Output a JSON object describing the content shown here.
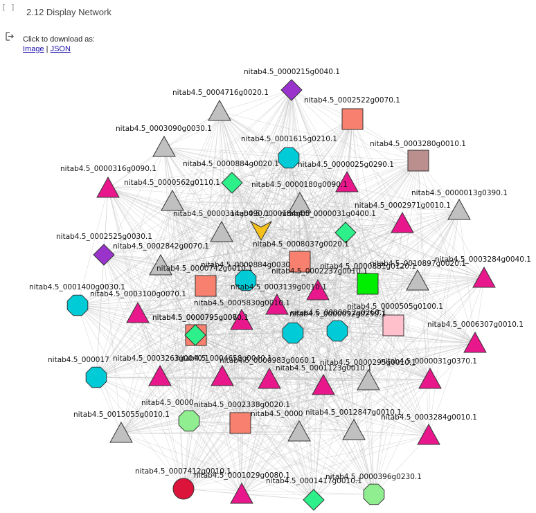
{
  "cell": {
    "prompt": "[ ]",
    "title": "2.12 Display Network"
  },
  "output": {
    "icon": "output-arrow-icon",
    "download_text": "Click to download as:",
    "link_image": "Image",
    "separator": "|",
    "link_json": "JSON"
  },
  "network": {
    "colors": {
      "edge": "#bdbdbd",
      "gray": "#c0c0c0",
      "pink": "#e8188c",
      "salmon": "#f8806e",
      "cyan": "#00cbd6",
      "green": "#2ef08a",
      "purple": "#9933cc",
      "gold": "#f5c01a",
      "lime": "#00ee00",
      "lightpink": "#ffc0cb",
      "rosybrown": "#bc8f8f",
      "lightgreen": "#90ee90",
      "crimson": "#dc143c"
    },
    "nodes": [
      {
        "label": "nitab4.5_0000215g0040.1",
        "shape": "diamond",
        "color": "purple"
      },
      {
        "label": "nitab4.5_0004716g0020.1",
        "shape": "triangle",
        "color": "gray"
      },
      {
        "label": "nitab4.5_0002522g0070.1",
        "shape": "square",
        "color": "salmon"
      },
      {
        "label": "nitab4.5_0003090g0030.1",
        "shape": "triangle",
        "color": "gray"
      },
      {
        "label": "nitab4.5_0001615g0210.1",
        "shape": "octagon",
        "color": "cyan"
      },
      {
        "label": "nitab4.5_0003280g0010.1",
        "shape": "square",
        "color": "rosybrown"
      },
      {
        "label": "nitab4.5_0000884g0020.1",
        "shape": "diamond",
        "color": "green"
      },
      {
        "label": "nitab4.5_0000025g0290.1",
        "shape": "triangle",
        "color": "pink"
      },
      {
        "label": "nitab4.5_0000316g0090.1",
        "shape": "triangle",
        "color": "pink"
      },
      {
        "label": "nitab4.5_0000562g0110.1",
        "shape": "triangle",
        "color": "gray"
      },
      {
        "label": "nitab4.5_0000180g0090.1",
        "shape": "triangle",
        "color": "gray"
      },
      {
        "label": "nitab4.5_0000013g0390.1",
        "shape": "triangle",
        "color": "gray"
      },
      {
        "label": "nitab4.5_0002971g0010.1",
        "shape": "triangle",
        "color": "pink"
      },
      {
        "label": "nitab4.5_0000314g0090.1",
        "shape": "triangle",
        "color": "gray"
      },
      {
        "label": "nitab4.5_0000184g00",
        "shape": "vee",
        "color": "gold"
      },
      {
        "label": "nitab4.5_0000031g0400.1",
        "shape": "diamond",
        "color": "green"
      },
      {
        "label": "nitab4.5_0002525g0030.1",
        "shape": "diamond",
        "color": "purple"
      },
      {
        "label": "nitab4.5_0008037g0020.1",
        "shape": "square",
        "color": "salmon"
      },
      {
        "label": "nitab4.5_0002842g0070.1",
        "shape": "triangle",
        "color": "gray"
      },
      {
        "label": "nitab4.5_0003284g0040.1",
        "shape": "triangle",
        "color": "pink"
      },
      {
        "label": "nitab4.5_0000884g0030",
        "shape": "octagon",
        "color": "cyan"
      },
      {
        "label": "nitab4.5_0002237g0010.1",
        "shape": "triangle",
        "color": "pink"
      },
      {
        "label": "nitab4.5_0000881g0120.1",
        "shape": "square",
        "color": "lime"
      },
      {
        "label": "nitab4.5_0010897g0020.1",
        "shape": "triangle",
        "color": "gray"
      },
      {
        "label": "nitab4.5_0001400g0030.1",
        "shape": "octagon",
        "color": "cyan"
      },
      {
        "label": "nitab4.5_0000742g0010.1",
        "shape": "square",
        "color": "salmon"
      },
      {
        "label": "nitab4.5_0003139g0010.1",
        "shape": "triangle",
        "color": "pink"
      },
      {
        "label": "nitab4.5_0003100g0070.1",
        "shape": "triangle",
        "color": "pink"
      },
      {
        "label": "nitab4.5_0005830g0010.1",
        "shape": "triangle",
        "color": "pink"
      },
      {
        "label": "nitab4.5_0000505g0100.1",
        "shape": "square",
        "color": "lightpink"
      },
      {
        "label": "nitab4.5_0000795g0060.1",
        "shape": "square",
        "color": "salmon"
      },
      {
        "label": "nitab4.5_0000052g0250.1",
        "shape": "octagon",
        "color": "cyan"
      },
      {
        "label": "nitab4.5_0000052g0260.1",
        "shape": "octagon",
        "color": "cyan"
      },
      {
        "label": "nitab4.5_0000795g0070.1",
        "shape": "diamond",
        "color": "green"
      },
      {
        "label": "nitab4.5_0006307g0010.1",
        "shape": "triangle",
        "color": "pink"
      },
      {
        "label": "nitab4.5_000017",
        "shape": "octagon",
        "color": "cyan"
      },
      {
        "label": "nitab4.5_0003263g0040.1",
        "shape": "triangle",
        "color": "pink"
      },
      {
        "label": "nitab4.5_0004658g0040.1",
        "shape": "triangle",
        "color": "pink"
      },
      {
        "label": "nitab4.5_0000983g0060.1",
        "shape": "triangle",
        "color": "pink"
      },
      {
        "label": "nitab4.5_0001123g0010.1",
        "shape": "triangle",
        "color": "pink"
      },
      {
        "label": "nitab4.5_0000295g0010.1",
        "shape": "triangle",
        "color": "gray"
      },
      {
        "label": "nitab4.5_0000031g0370.1",
        "shape": "triangle",
        "color": "pink"
      },
      {
        "label": "nitab4.5_0002338g0020.1",
        "shape": "square",
        "color": "salmon"
      },
      {
        "label": "nitab4.5_0000",
        "shape": "octagon",
        "color": "lightgreen"
      },
      {
        "label": "nitab4.5_0015055g0010.1",
        "shape": "triangle",
        "color": "gray"
      },
      {
        "label": "nitab4.5_0000",
        "shape": "triangle",
        "color": "gray"
      },
      {
        "label": "nitab4.5_0012847g0010.1",
        "shape": "triangle",
        "color": "gray"
      },
      {
        "label": "nitab4.5_0003284g0010.1",
        "shape": "triangle",
        "color": "pink"
      },
      {
        "label": "nitab4.5_0007412g0010.1",
        "shape": "circle",
        "color": "crimson"
      },
      {
        "label": "nitab4.5_0001029g0080.1",
        "shape": "triangle",
        "color": "pink"
      },
      {
        "label": "nitab4.5_0001417g0010.1",
        "shape": "diamond",
        "color": "green"
      },
      {
        "label": "nitab4.5_0000396g0230.1",
        "shape": "octagon",
        "color": "lightgreen"
      }
    ]
  }
}
